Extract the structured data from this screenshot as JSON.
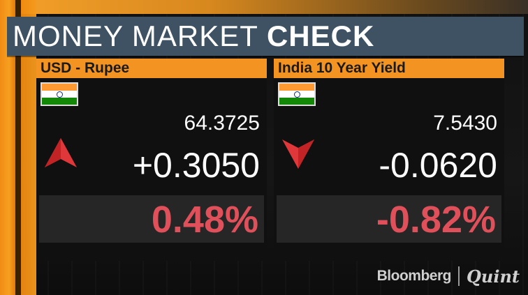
{
  "header": {
    "title_light": "MONEY MARKET",
    "title_bold": "CHECK"
  },
  "panels": [
    {
      "title": "USD - Rupee",
      "flag": "india-flag",
      "price": "64.3725",
      "change": "+0.3050",
      "direction": "up",
      "arrow_color": "#e0383a",
      "percent": "0.48%"
    },
    {
      "title": "India 10 Year Yield",
      "flag": "india-flag",
      "price": "7.5430",
      "change": "-0.0620",
      "direction": "down",
      "arrow_color": "#e0383a",
      "percent": "-0.82%"
    }
  ],
  "logo": {
    "brand1": "Bloomberg",
    "brand2": "Quint"
  },
  "colors": {
    "accent_orange": "#f39321",
    "header_bg": "#3e5264",
    "percent_red": "#e0505a"
  }
}
